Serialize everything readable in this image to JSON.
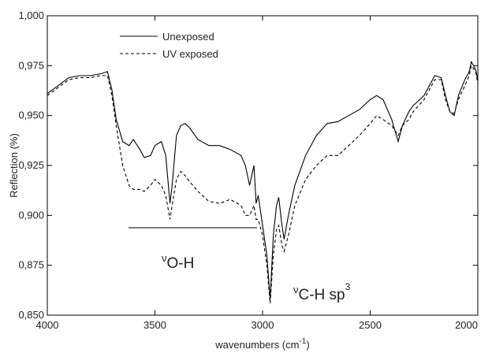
{
  "chart_data": {
    "type": "line",
    "xlabel": {
      "text": "wavenumbers (cm",
      "superscript": "-1",
      "suffix": ")"
    },
    "ylabel": "Reflection (%)",
    "xlim": [
      4000,
      2000
    ],
    "xticks": [
      4000,
      3500,
      3000,
      2500,
      2000
    ],
    "ylim": [
      0.85,
      1.0
    ],
    "yticks": [
      {
        "value": 0.85,
        "label": "0,850"
      },
      {
        "value": 0.875,
        "label": "0,875"
      },
      {
        "value": 0.9,
        "label": "0,900"
      },
      {
        "value": 0.925,
        "label": "0,925"
      },
      {
        "value": 0.95,
        "label": "0,950"
      },
      {
        "value": 0.975,
        "label": "0,975"
      },
      {
        "value": 1.0,
        "label": "1,000"
      }
    ],
    "legend": "upper left",
    "x": [
      4000,
      3950,
      3900,
      3850,
      3800,
      3750,
      3720,
      3700,
      3680,
      3650,
      3620,
      3600,
      3570,
      3550,
      3520,
      3500,
      3470,
      3450,
      3430,
      3420,
      3400,
      3380,
      3360,
      3340,
      3300,
      3250,
      3200,
      3150,
      3100,
      3080,
      3060,
      3040,
      3030,
      3020,
      3000,
      2980,
      2965,
      2950,
      2935,
      2925,
      2910,
      2900,
      2880,
      2850,
      2800,
      2750,
      2700,
      2650,
      2600,
      2550,
      2500,
      2470,
      2440,
      2400,
      2370,
      2350,
      2320,
      2300,
      2250,
      2200,
      2170,
      2150,
      2130,
      2110,
      2090,
      2060,
      2040,
      2030,
      2010,
      2000
    ],
    "series": [
      {
        "name": "Unexposed",
        "color": "#000000",
        "style": "solid",
        "values": [
          0.961,
          0.965,
          0.969,
          0.97,
          0.97,
          0.971,
          0.972,
          0.963,
          0.948,
          0.937,
          0.935,
          0.938,
          0.933,
          0.929,
          0.93,
          0.935,
          0.937,
          0.93,
          0.906,
          0.915,
          0.94,
          0.945,
          0.946,
          0.944,
          0.938,
          0.935,
          0.935,
          0.933,
          0.93,
          0.925,
          0.915,
          0.925,
          0.906,
          0.91,
          0.895,
          0.88,
          0.858,
          0.89,
          0.905,
          0.909,
          0.895,
          0.888,
          0.9,
          0.915,
          0.93,
          0.94,
          0.946,
          0.947,
          0.95,
          0.953,
          0.958,
          0.96,
          0.958,
          0.948,
          0.937,
          0.945,
          0.952,
          0.955,
          0.96,
          0.97,
          0.969,
          0.96,
          0.952,
          0.95,
          0.96,
          0.968,
          0.972,
          0.977,
          0.973,
          0.968
        ]
      },
      {
        "name": "UV exposed",
        "color": "#000000",
        "style": "dashed",
        "values": [
          0.96,
          0.964,
          0.968,
          0.969,
          0.969,
          0.97,
          0.97,
          0.96,
          0.945,
          0.925,
          0.915,
          0.913,
          0.913,
          0.912,
          0.915,
          0.918,
          0.915,
          0.91,
          0.898,
          0.905,
          0.918,
          0.922,
          0.92,
          0.917,
          0.912,
          0.907,
          0.906,
          0.908,
          0.905,
          0.9,
          0.9,
          0.905,
          0.898,
          0.898,
          0.89,
          0.875,
          0.856,
          0.88,
          0.893,
          0.895,
          0.885,
          0.882,
          0.89,
          0.905,
          0.918,
          0.925,
          0.93,
          0.93,
          0.935,
          0.94,
          0.946,
          0.95,
          0.948,
          0.945,
          0.94,
          0.945,
          0.948,
          0.952,
          0.958,
          0.968,
          0.968,
          0.958,
          0.952,
          0.951,
          0.958,
          0.965,
          0.97,
          0.975,
          0.972,
          0.966
        ]
      }
    ],
    "annotations": [
      {
        "symbol": "ν",
        "subscript": "O-H"
      },
      {
        "symbol": "ν",
        "subscript": "C-H sp",
        "superscript": "3"
      }
    ]
  }
}
